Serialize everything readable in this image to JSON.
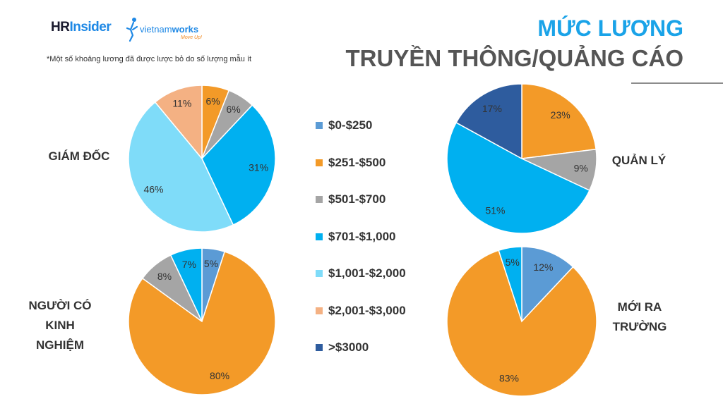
{
  "branding": {
    "hr_part1": "HR",
    "hr_part2": "Insider",
    "vw_part1": "vietnam",
    "vw_part2": "works",
    "vw_tagline": "Move Up!"
  },
  "note": "*Một số khoảng lương đã được lược bỏ do số lượng mẫu ít",
  "title_line1": "MỨC LƯƠNG",
  "title_line2": "TRUYỀN THÔNG/QUẢNG CÁO",
  "legend": {
    "items": [
      {
        "label": "$0-$250",
        "color": "#5b9bd5"
      },
      {
        "label": "$251-$500",
        "color": "#f39a28"
      },
      {
        "label": "$501-$700",
        "color": "#a5a5a5"
      },
      {
        "label": "$701-$1,000",
        "color": "#00b0f0"
      },
      {
        "label": "$1,001-$2,000",
        "color": "#7fdcf9"
      },
      {
        "label": "$2,001-$3,000",
        "color": "#f4b183"
      },
      {
        "label": ">$3000",
        "color": "#2e5c9e"
      }
    ]
  },
  "chart_data": [
    {
      "type": "pie",
      "title": "GIÁM ĐỐC",
      "categories": [
        "$251-$500",
        "$501-$700",
        "$701-$1,000",
        "$1,001-$2,000",
        "$2,001-$3,000"
      ],
      "values": [
        6,
        6,
        31,
        46,
        11
      ],
      "colors": [
        "#f39a28",
        "#a5a5a5",
        "#00b0f0",
        "#7fdcf9",
        "#f4b183"
      ],
      "labels": [
        "6%",
        "6%",
        "31%",
        "46%",
        "11%"
      ]
    },
    {
      "type": "pie",
      "title": "QUẢN LÝ",
      "categories": [
        "$251-$500",
        "$501-$700",
        "$701-$1,000",
        ">$3000"
      ],
      "values": [
        23,
        9,
        51,
        17
      ],
      "colors": [
        "#f39a28",
        "#a5a5a5",
        "#00b0f0",
        "#2e5c9e"
      ],
      "labels": [
        "23%",
        "9%",
        "51%",
        "17%"
      ]
    },
    {
      "type": "pie",
      "title": "NGƯỜI CÓ KINH NGHIỆM",
      "categories": [
        "$0-$250",
        "$251-$500",
        "$501-$700",
        "$701-$1,000"
      ],
      "values": [
        5,
        80,
        8,
        7
      ],
      "colors": [
        "#5b9bd5",
        "#f39a28",
        "#a5a5a5",
        "#00b0f0"
      ],
      "labels": [
        "5%",
        "80%",
        "8%",
        "7%"
      ]
    },
    {
      "type": "pie",
      "title": "MỚI RA TRƯỜNG",
      "categories": [
        "$0-$250",
        "$251-$500",
        "$701-$1,000"
      ],
      "values": [
        12,
        83,
        5
      ],
      "colors": [
        "#5b9bd5",
        "#f39a28",
        "#00b0f0"
      ],
      "labels": [
        "12%",
        "83%",
        "5%"
      ]
    }
  ]
}
